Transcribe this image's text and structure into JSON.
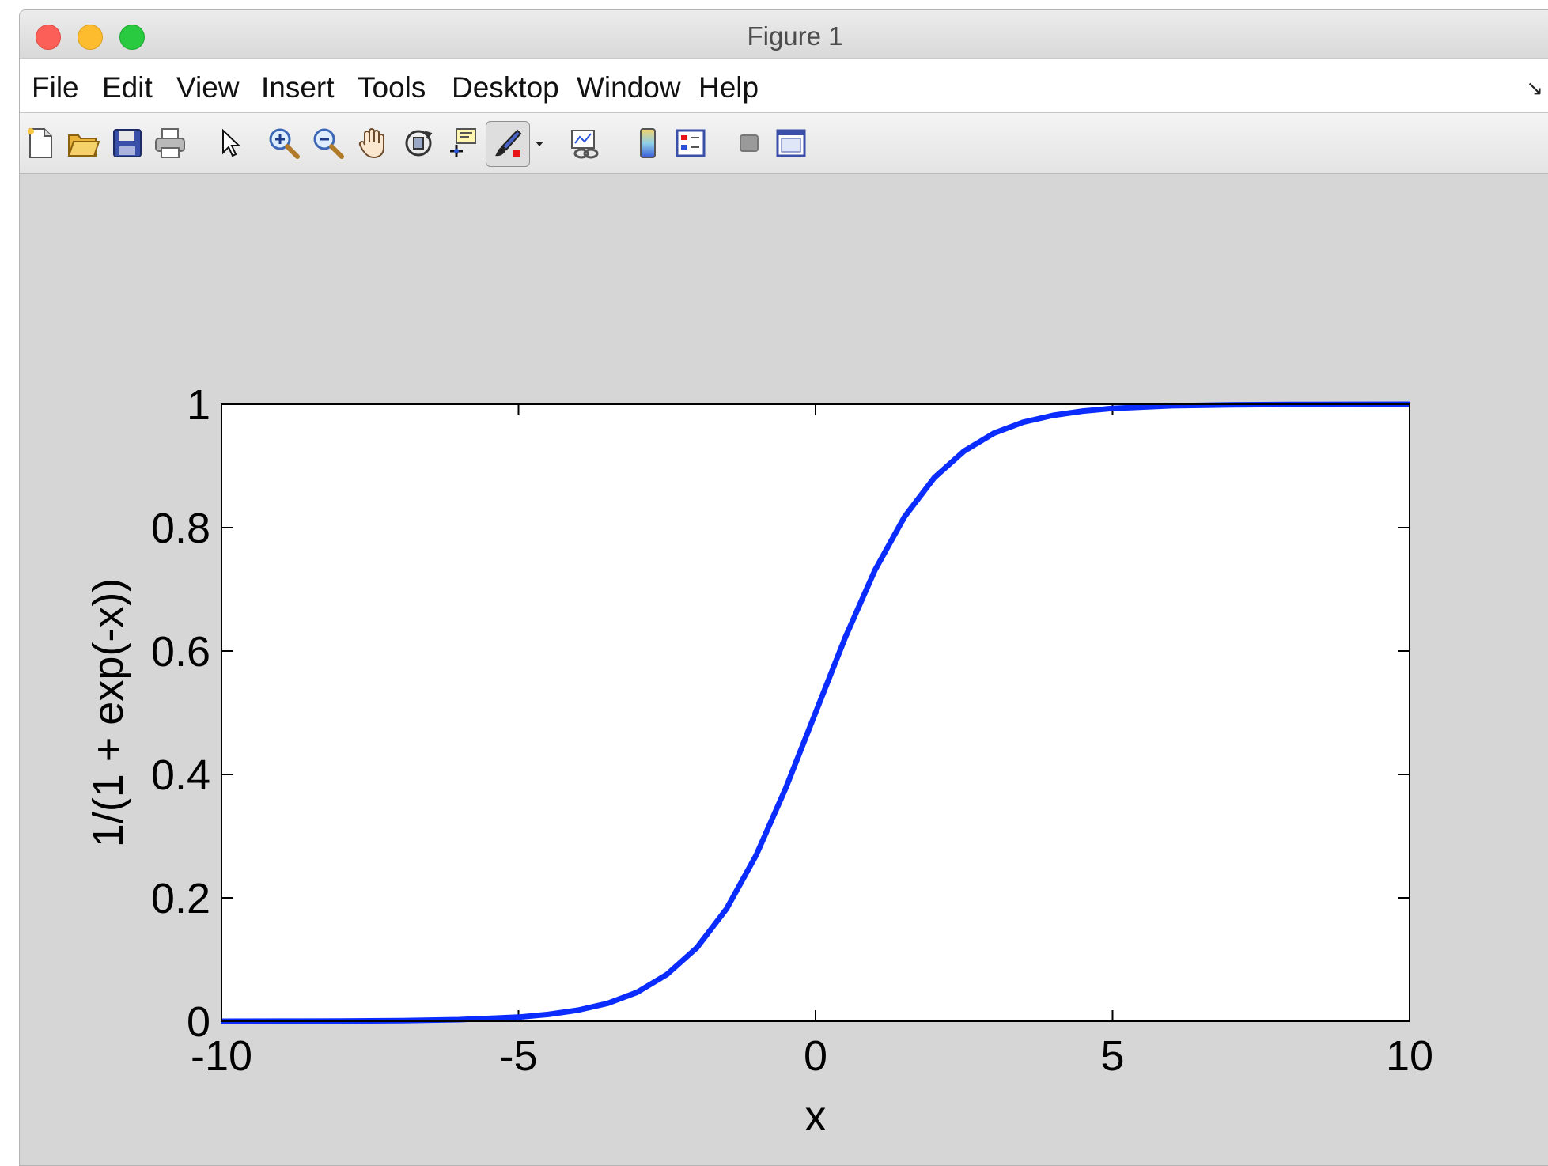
{
  "window": {
    "title": "Figure 1"
  },
  "menubar": {
    "items": [
      "File",
      "Edit",
      "View",
      "Insert",
      "Tools",
      "Desktop",
      "Window",
      "Help"
    ],
    "dock_glyph": "↘"
  },
  "toolbar": {
    "icons": [
      "new-figure-icon",
      "open-file-icon",
      "save-icon",
      "print-icon",
      "pointer-arrow-icon",
      "zoom-in-icon",
      "zoom-out-icon",
      "pan-hand-icon",
      "rotate-3d-icon",
      "data-cursor-icon",
      "brush-icon",
      "brush-dropdown-icon",
      "link-plot-icon",
      "colorbar-icon",
      "legend-icon",
      "hide-plot-tools-icon",
      "show-plot-tools-icon"
    ]
  },
  "chart_data": {
    "type": "line",
    "function": "1/(1+exp(-x))",
    "xlabel": "x",
    "ylabel": "1/(1 + exp(-x))",
    "xlim": [
      -10,
      10
    ],
    "ylim": [
      0,
      1
    ],
    "xticks": [
      "-10",
      "-5",
      "0",
      "5",
      "10"
    ],
    "yticks": [
      "0",
      "0.2",
      "0.4",
      "0.6",
      "0.8",
      "1"
    ],
    "grid": false,
    "series": [
      {
        "color": "#0a2cff",
        "x": [
          -10,
          -9,
          -8,
          -7,
          -6,
          -5,
          -4.5,
          -4,
          -3.5,
          -3,
          -2.5,
          -2,
          -1.5,
          -1,
          -0.5,
          0,
          0.5,
          1,
          1.5,
          2,
          2.5,
          3,
          3.5,
          4,
          4.5,
          5,
          6,
          7,
          8,
          9,
          10
        ],
        "y": [
          5e-05,
          0.00012,
          0.00034,
          0.00091,
          0.0025,
          0.0067,
          0.011,
          0.018,
          0.029,
          0.047,
          0.076,
          0.119,
          0.182,
          0.269,
          0.378,
          0.5,
          0.622,
          0.731,
          0.818,
          0.881,
          0.924,
          0.953,
          0.971,
          0.982,
          0.989,
          0.9933,
          0.9975,
          0.9991,
          0.99966,
          0.99988,
          0.99995
        ]
      }
    ]
  }
}
